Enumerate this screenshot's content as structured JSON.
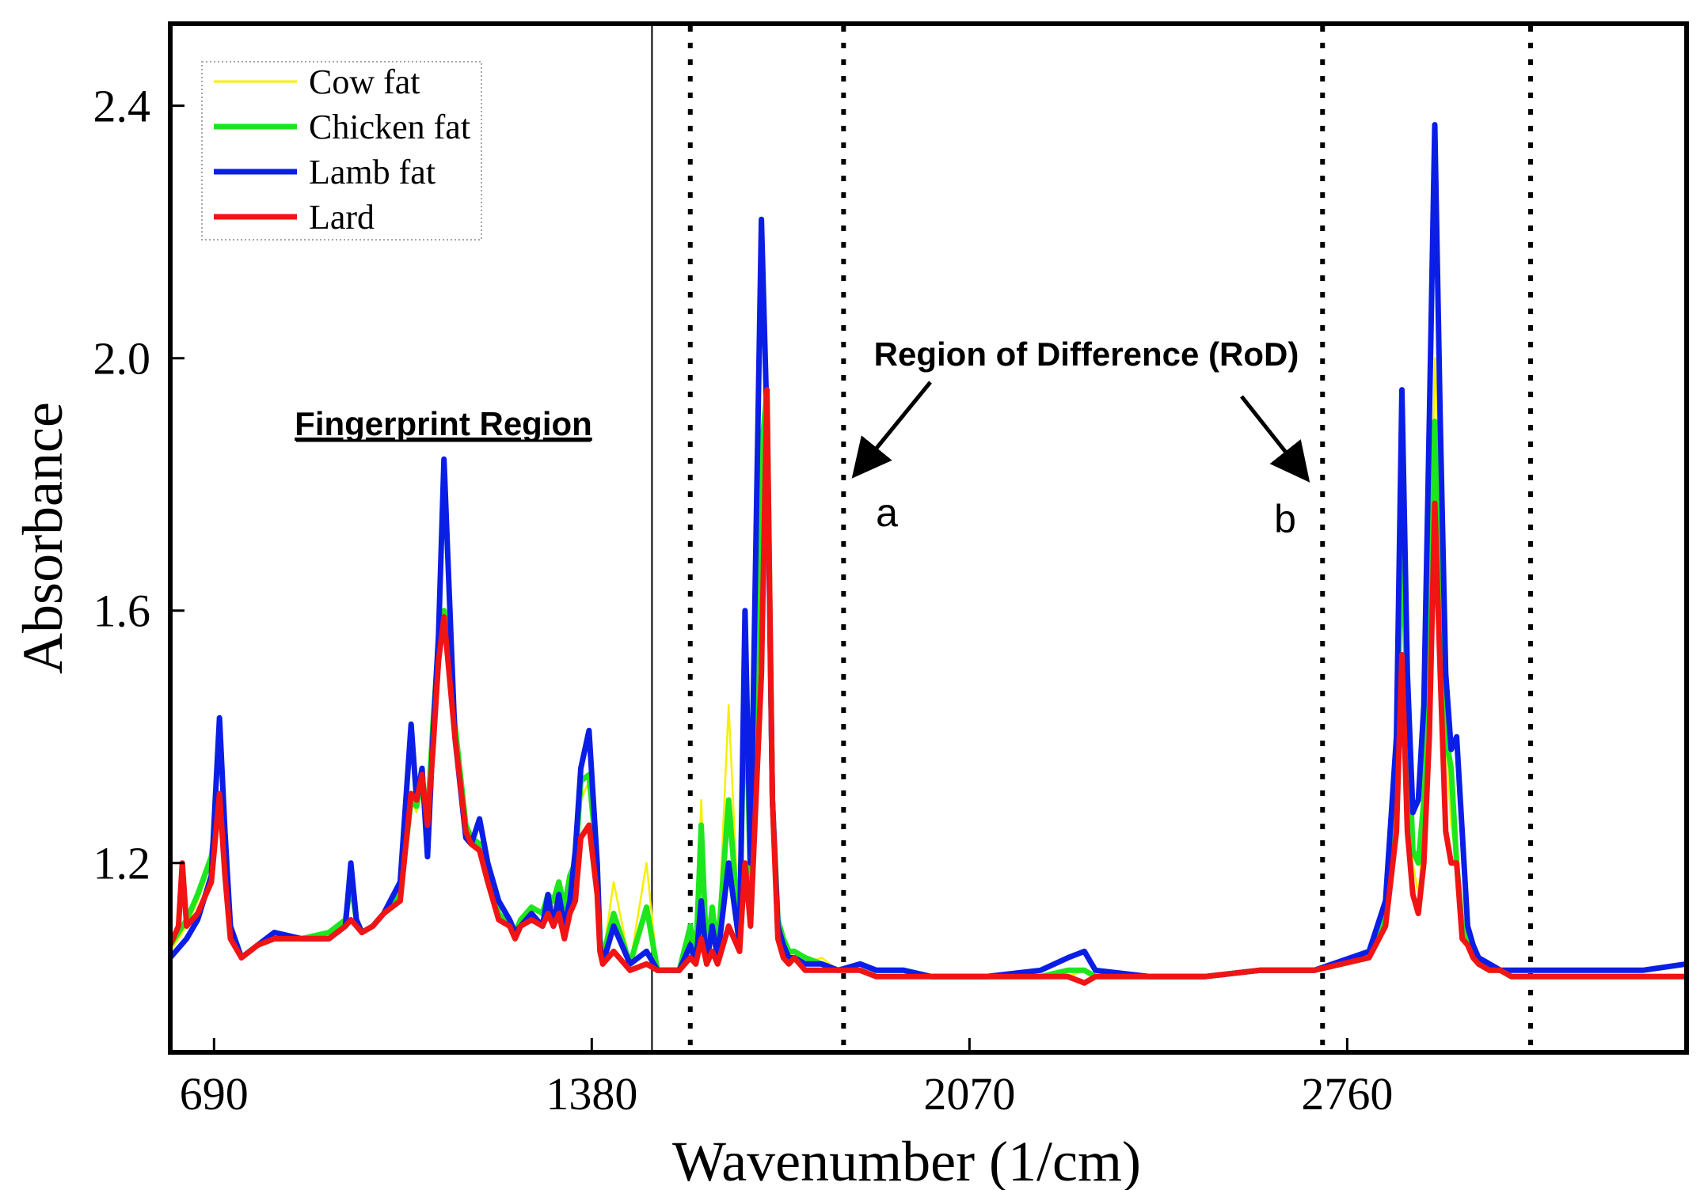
{
  "chart_data": {
    "type": "line",
    "title": "",
    "xlabel": "Wavenumber (1/cm)",
    "ylabel": "Absorbance",
    "xlim": [
      610,
      3380
    ],
    "ylim": [
      0.9,
      2.53
    ],
    "xticks": [
      690,
      1380,
      2070,
      2760
    ],
    "yticks": [
      1.2,
      1.6,
      2.0,
      2.4
    ],
    "xtick_labels": [
      "690",
      "1380",
      "2070",
      "2760"
    ],
    "ytick_labels": [
      "1.2",
      "1.6",
      "2.0",
      "2.4"
    ],
    "legend_position": "top-left",
    "series": [
      {
        "name": "Cow fat",
        "color": "#f5f000",
        "x": [
          610,
          640,
          660,
          685,
          700,
          710,
          720,
          740,
          770,
          800,
          850,
          900,
          930,
          940,
          950,
          960,
          980,
          1000,
          1030,
          1050,
          1060,
          1070,
          1080,
          1090,
          1100,
          1110,
          1130,
          1150,
          1160,
          1175,
          1190,
          1210,
          1230,
          1240,
          1250,
          1270,
          1290,
          1300,
          1310,
          1320,
          1330,
          1340,
          1350,
          1360,
          1375,
          1390,
          1395,
          1400,
          1420,
          1450,
          1480,
          1500,
          1540,
          1560,
          1570,
          1580,
          1590,
          1600,
          1610,
          1630,
          1650,
          1660,
          1670,
          1690,
          1700,
          1710,
          1720,
          1730,
          1740,
          1750,
          1770,
          1800,
          1830,
          1870,
          1900,
          1950,
          2000,
          2100,
          2200,
          2250,
          2280,
          2300,
          2400,
          2500,
          2600,
          2700,
          2800,
          2830,
          2850,
          2860,
          2870,
          2880,
          2890,
          2900,
          2910,
          2920,
          2930,
          2940,
          2950,
          2960,
          2970,
          2980,
          2990,
          3000,
          3020,
          3040,
          3060,
          3100,
          3200,
          3300,
          3380
        ],
        "values": [
          1.06,
          1.1,
          1.14,
          1.2,
          1.31,
          1.2,
          1.1,
          1.05,
          1.07,
          1.08,
          1.08,
          1.08,
          1.11,
          1.16,
          1.11,
          1.09,
          1.1,
          1.12,
          1.15,
          1.3,
          1.28,
          1.33,
          1.27,
          1.41,
          1.54,
          1.6,
          1.4,
          1.26,
          1.24,
          1.23,
          1.18,
          1.12,
          1.1,
          1.08,
          1.1,
          1.13,
          1.12,
          1.15,
          1.13,
          1.16,
          1.12,
          1.16,
          1.18,
          1.3,
          1.33,
          1.2,
          1.08,
          1.05,
          1.17,
          1.04,
          1.2,
          1.03,
          1.03,
          1.1,
          1.05,
          1.3,
          1.05,
          1.1,
          1.06,
          1.45,
          1.08,
          1.5,
          1.16,
          1.8,
          1.95,
          1.3,
          1.1,
          1.07,
          1.05,
          1.06,
          1.04,
          1.05,
          1.03,
          1.04,
          1.03,
          1.03,
          1.02,
          1.02,
          1.02,
          1.02,
          1.03,
          1.02,
          1.02,
          1.02,
          1.03,
          1.03,
          1.05,
          1.1,
          1.3,
          1.7,
          1.4,
          1.2,
          1.15,
          1.25,
          1.55,
          2.0,
          1.8,
          1.4,
          1.26,
          1.2,
          1.1,
          1.08,
          1.06,
          1.04,
          1.03,
          1.03,
          1.02,
          1.02,
          1.02,
          1.02,
          1.02
        ]
      },
      {
        "name": "Chicken fat",
        "color": "#1ee61e",
        "x": [
          610,
          640,
          660,
          685,
          700,
          710,
          720,
          740,
          770,
          800,
          850,
          900,
          930,
          940,
          950,
          960,
          980,
          1000,
          1030,
          1050,
          1060,
          1070,
          1080,
          1090,
          1100,
          1110,
          1130,
          1150,
          1160,
          1175,
          1190,
          1210,
          1230,
          1240,
          1250,
          1270,
          1290,
          1300,
          1310,
          1320,
          1330,
          1340,
          1350,
          1360,
          1375,
          1390,
          1395,
          1400,
          1420,
          1450,
          1480,
          1500,
          1540,
          1560,
          1570,
          1580,
          1590,
          1600,
          1610,
          1630,
          1650,
          1660,
          1670,
          1690,
          1700,
          1710,
          1720,
          1730,
          1740,
          1750,
          1770,
          1800,
          1830,
          1870,
          1900,
          1950,
          2000,
          2100,
          2200,
          2250,
          2280,
          2300,
          2400,
          2500,
          2600,
          2700,
          2800,
          2830,
          2850,
          2860,
          2870,
          2880,
          2890,
          2900,
          2910,
          2920,
          2930,
          2940,
          2950,
          2960,
          2970,
          2980,
          2990,
          3000,
          3020,
          3040,
          3060,
          3100,
          3200,
          3300,
          3380
        ],
        "values": [
          1.07,
          1.11,
          1.15,
          1.21,
          1.31,
          1.2,
          1.1,
          1.05,
          1.07,
          1.08,
          1.08,
          1.09,
          1.11,
          1.17,
          1.11,
          1.09,
          1.1,
          1.12,
          1.15,
          1.3,
          1.29,
          1.33,
          1.27,
          1.42,
          1.55,
          1.6,
          1.42,
          1.26,
          1.24,
          1.23,
          1.18,
          1.12,
          1.1,
          1.09,
          1.11,
          1.13,
          1.12,
          1.15,
          1.14,
          1.17,
          1.13,
          1.18,
          1.2,
          1.33,
          1.34,
          1.2,
          1.08,
          1.05,
          1.12,
          1.04,
          1.13,
          1.03,
          1.03,
          1.1,
          1.05,
          1.26,
          1.05,
          1.13,
          1.06,
          1.3,
          1.08,
          1.55,
          1.16,
          1.85,
          1.95,
          1.3,
          1.11,
          1.08,
          1.06,
          1.06,
          1.05,
          1.04,
          1.03,
          1.04,
          1.03,
          1.03,
          1.02,
          1.02,
          1.02,
          1.03,
          1.03,
          1.02,
          1.02,
          1.02,
          1.03,
          1.03,
          1.05,
          1.12,
          1.35,
          1.75,
          1.45,
          1.22,
          1.2,
          1.3,
          1.6,
          1.9,
          1.7,
          1.4,
          1.35,
          1.2,
          1.1,
          1.08,
          1.07,
          1.04,
          1.03,
          1.03,
          1.02,
          1.02,
          1.02,
          1.02,
          1.02
        ]
      },
      {
        "name": "Lamb fat",
        "color": "#0a1ee6",
        "x": [
          610,
          640,
          660,
          685,
          700,
          710,
          720,
          740,
          770,
          800,
          850,
          900,
          930,
          940,
          950,
          960,
          980,
          1000,
          1030,
          1050,
          1060,
          1070,
          1080,
          1090,
          1100,
          1110,
          1130,
          1150,
          1160,
          1175,
          1190,
          1210,
          1230,
          1240,
          1250,
          1270,
          1290,
          1300,
          1310,
          1320,
          1330,
          1340,
          1350,
          1360,
          1375,
          1390,
          1395,
          1400,
          1420,
          1450,
          1480,
          1500,
          1540,
          1560,
          1570,
          1580,
          1590,
          1600,
          1610,
          1630,
          1650,
          1660,
          1670,
          1690,
          1700,
          1710,
          1720,
          1730,
          1740,
          1750,
          1770,
          1800,
          1830,
          1870,
          1900,
          1950,
          2000,
          2100,
          2200,
          2250,
          2280,
          2300,
          2400,
          2500,
          2600,
          2700,
          2800,
          2830,
          2850,
          2860,
          2870,
          2880,
          2890,
          2900,
          2910,
          2920,
          2930,
          2940,
          2950,
          2960,
          2970,
          2980,
          2990,
          3000,
          3020,
          3040,
          3060,
          3100,
          3200,
          3300,
          3380
        ],
        "values": [
          1.05,
          1.08,
          1.11,
          1.18,
          1.43,
          1.25,
          1.1,
          1.05,
          1.07,
          1.09,
          1.08,
          1.08,
          1.1,
          1.2,
          1.11,
          1.09,
          1.1,
          1.12,
          1.17,
          1.42,
          1.3,
          1.35,
          1.21,
          1.4,
          1.56,
          1.84,
          1.4,
          1.24,
          1.23,
          1.27,
          1.2,
          1.14,
          1.11,
          1.09,
          1.1,
          1.12,
          1.1,
          1.15,
          1.1,
          1.15,
          1.1,
          1.14,
          1.22,
          1.35,
          1.41,
          1.2,
          1.07,
          1.04,
          1.1,
          1.04,
          1.06,
          1.03,
          1.03,
          1.07,
          1.04,
          1.14,
          1.04,
          1.1,
          1.05,
          1.2,
          1.07,
          1.6,
          1.2,
          2.22,
          1.9,
          1.3,
          1.1,
          1.07,
          1.05,
          1.05,
          1.04,
          1.04,
          1.03,
          1.04,
          1.03,
          1.03,
          1.02,
          1.02,
          1.03,
          1.05,
          1.06,
          1.03,
          1.02,
          1.02,
          1.03,
          1.03,
          1.06,
          1.14,
          1.4,
          1.95,
          1.5,
          1.28,
          1.3,
          1.45,
          1.9,
          2.37,
          1.9,
          1.5,
          1.38,
          1.4,
          1.25,
          1.1,
          1.07,
          1.05,
          1.04,
          1.03,
          1.03,
          1.03,
          1.03,
          1.03,
          1.04
        ]
      },
      {
        "name": "Lard",
        "color": "#f01414",
        "x": [
          610,
          625,
          632,
          640,
          660,
          685,
          700,
          710,
          720,
          740,
          770,
          800,
          850,
          900,
          930,
          940,
          950,
          960,
          980,
          1000,
          1030,
          1050,
          1060,
          1070,
          1080,
          1090,
          1100,
          1110,
          1130,
          1150,
          1160,
          1175,
          1190,
          1210,
          1230,
          1240,
          1250,
          1270,
          1290,
          1300,
          1310,
          1320,
          1330,
          1340,
          1350,
          1360,
          1375,
          1390,
          1395,
          1400,
          1420,
          1450,
          1480,
          1500,
          1540,
          1560,
          1570,
          1580,
          1590,
          1600,
          1610,
          1630,
          1650,
          1660,
          1670,
          1690,
          1700,
          1710,
          1720,
          1730,
          1740,
          1750,
          1770,
          1800,
          1830,
          1870,
          1900,
          1950,
          2000,
          2100,
          2200,
          2250,
          2280,
          2300,
          2400,
          2500,
          2600,
          2700,
          2800,
          2830,
          2850,
          2860,
          2870,
          2880,
          2890,
          2900,
          2910,
          2920,
          2930,
          2940,
          2950,
          2960,
          2970,
          2980,
          2990,
          3000,
          3020,
          3040,
          3060,
          3100,
          3200,
          3300,
          3380
        ],
        "values": [
          1.07,
          1.1,
          1.2,
          1.1,
          1.12,
          1.17,
          1.31,
          1.18,
          1.08,
          1.05,
          1.07,
          1.08,
          1.08,
          1.08,
          1.1,
          1.11,
          1.1,
          1.09,
          1.1,
          1.12,
          1.14,
          1.31,
          1.3,
          1.34,
          1.26,
          1.38,
          1.52,
          1.59,
          1.4,
          1.25,
          1.23,
          1.22,
          1.17,
          1.11,
          1.1,
          1.08,
          1.1,
          1.11,
          1.1,
          1.12,
          1.1,
          1.12,
          1.08,
          1.12,
          1.14,
          1.24,
          1.26,
          1.15,
          1.06,
          1.04,
          1.06,
          1.03,
          1.04,
          1.03,
          1.03,
          1.05,
          1.04,
          1.08,
          1.04,
          1.06,
          1.04,
          1.1,
          1.06,
          1.2,
          1.1,
          1.5,
          1.95,
          1.3,
          1.08,
          1.05,
          1.04,
          1.05,
          1.03,
          1.03,
          1.03,
          1.03,
          1.02,
          1.02,
          1.02,
          1.02,
          1.02,
          1.02,
          1.01,
          1.02,
          1.02,
          1.02,
          1.03,
          1.03,
          1.05,
          1.1,
          1.25,
          1.53,
          1.25,
          1.15,
          1.12,
          1.2,
          1.4,
          1.77,
          1.5,
          1.25,
          1.2,
          1.2,
          1.08,
          1.07,
          1.05,
          1.04,
          1.03,
          1.03,
          1.02,
          1.02,
          1.02,
          1.02,
          1.02
        ]
      }
    ],
    "vertical_lines": [
      {
        "x": 1490,
        "style": "solid"
      },
      {
        "x": 1560,
        "style": "dotted"
      },
      {
        "x": 1840,
        "style": "dotted"
      },
      {
        "x": 2715,
        "style": "dotted"
      },
      {
        "x": 3095,
        "style": "dotted"
      }
    ],
    "annotations": {
      "fingerprint": "Fingerprint Region",
      "rod": "Region of Difference (RoD)",
      "label_a": "a",
      "label_b": "b"
    }
  }
}
